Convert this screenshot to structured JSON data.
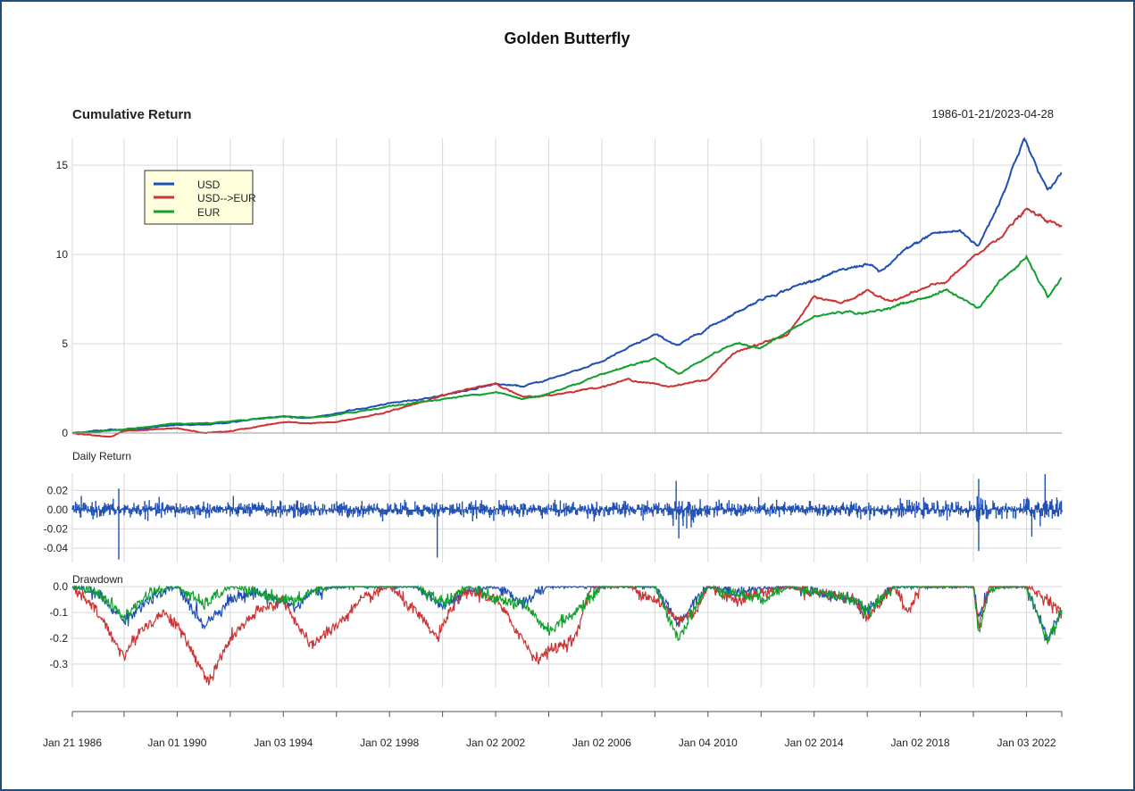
{
  "chart_data": {
    "type": "line",
    "title": "Golden Butterfly",
    "date_range": "1986-01-21/2023-04-28",
    "colors": {
      "USD": "#1f4fb4",
      "USD-->EUR": "#cc3333",
      "EUR": "#11a02d"
    },
    "x_ticks": [
      "Jan 21 1986",
      "Jan 01 1990",
      "Jan 03 1994",
      "Jan 02 1998",
      "Jan 02 2002",
      "Jan 02 2006",
      "Jan 04 2010",
      "Jan 02 2014",
      "Jan 02 2018",
      "Jan 03 2022"
    ],
    "x_tick_years": [
      1986.05,
      1990.0,
      1994.0,
      1998.0,
      2002.0,
      2006.0,
      2010.0,
      2014.0,
      2018.0,
      2022.0
    ],
    "xlim": [
      1986.05,
      2023.33
    ],
    "panels": [
      {
        "name": "Cumulative Return",
        "legend": [
          "USD",
          "USD-->EUR",
          "EUR"
        ],
        "legend_position": "top-left",
        "ylim": [
          0,
          16.5
        ],
        "y_ticks": [
          "0",
          "5",
          "10",
          "15"
        ],
        "y_tick_values": [
          0,
          5,
          10,
          15
        ],
        "series": [
          {
            "name": "USD",
            "points": [
              [
                1986.05,
                0
              ],
              [
                1987.5,
                0.2
              ],
              [
                1988.0,
                0.15
              ],
              [
                1990,
                0.45
              ],
              [
                1991,
                0.45
              ],
              [
                1992,
                0.6
              ],
              [
                1994,
                0.95
              ],
              [
                1995,
                0.85
              ],
              [
                1996,
                1.1
              ],
              [
                1998,
                1.65
              ],
              [
                2000,
                2.1
              ],
              [
                2002,
                2.75
              ],
              [
                2003,
                2.6
              ],
              [
                2004,
                3.0
              ],
              [
                2006,
                4.0
              ],
              [
                2008,
                5.5
              ],
              [
                2008.9,
                4.9
              ],
              [
                2010,
                5.9
              ],
              [
                2012,
                7.5
              ],
              [
                2014,
                8.6
              ],
              [
                2016,
                9.5
              ],
              [
                2016.5,
                9.0
              ],
              [
                2017.5,
                10.3
              ],
              [
                2018.5,
                11.2
              ],
              [
                2019.5,
                11.3
              ],
              [
                2020.2,
                10.5
              ],
              [
                2021,
                13.0
              ],
              [
                2021.9,
                16.5
              ],
              [
                2022.8,
                13.5
              ],
              [
                2023.33,
                14.6
              ]
            ]
          },
          {
            "name": "USD-->EUR",
            "points": [
              [
                1986.05,
                0
              ],
              [
                1987.5,
                -0.2
              ],
              [
                1988,
                0.1
              ],
              [
                1990,
                0.25
              ],
              [
                1991,
                0.0
              ],
              [
                1992,
                0.1
              ],
              [
                1994,
                0.6
              ],
              [
                1995,
                0.55
              ],
              [
                1996,
                0.6
              ],
              [
                1998,
                1.2
              ],
              [
                2000,
                2.1
              ],
              [
                2002,
                2.8
              ],
              [
                2003,
                2.0
              ],
              [
                2004,
                2.1
              ],
              [
                2006,
                2.6
              ],
              [
                2007,
                3.0
              ],
              [
                2008.5,
                2.6
              ],
              [
                2010,
                3.0
              ],
              [
                2011,
                4.5
              ],
              [
                2012,
                5.0
              ],
              [
                2013,
                5.5
              ],
              [
                2014,
                7.6
              ],
              [
                2015,
                7.3
              ],
              [
                2016,
                7.9
              ],
              [
                2017,
                7.4
              ],
              [
                2018,
                8.0
              ],
              [
                2019,
                8.5
              ],
              [
                2020,
                9.8
              ],
              [
                2021,
                11.0
              ],
              [
                2022,
                12.5
              ],
              [
                2022.8,
                11.9
              ],
              [
                2023.33,
                11.5
              ]
            ]
          },
          {
            "name": "EUR",
            "points": [
              [
                1986.05,
                0
              ],
              [
                1988,
                0.2
              ],
              [
                1990,
                0.55
              ],
              [
                1991,
                0.5
              ],
              [
                1992,
                0.65
              ],
              [
                1994,
                0.9
              ],
              [
                1995,
                0.85
              ],
              [
                1996,
                1.0
              ],
              [
                1998,
                1.5
              ],
              [
                2000,
                1.9
              ],
              [
                2002,
                2.3
              ],
              [
                2003,
                1.9
              ],
              [
                2004,
                2.2
              ],
              [
                2006,
                3.3
              ],
              [
                2008,
                4.2
              ],
              [
                2008.9,
                3.3
              ],
              [
                2010,
                4.3
              ],
              [
                2011,
                5.0
              ],
              [
                2012,
                4.8
              ],
              [
                2014,
                6.5
              ],
              [
                2015,
                6.8
              ],
              [
                2016,
                6.7
              ],
              [
                2018,
                7.5
              ],
              [
                2019,
                8.0
              ],
              [
                2020.2,
                7.0
              ],
              [
                2021,
                8.5
              ],
              [
                2022,
                9.8
              ],
              [
                2022.8,
                7.6
              ],
              [
                2023.33,
                8.7
              ]
            ]
          }
        ]
      },
      {
        "name": "Daily Return",
        "ylim": [
          -0.055,
          0.038
        ],
        "y_ticks": [
          "0.02",
          "0.00",
          "-0.02",
          "-0.04"
        ],
        "y_tick_values": [
          0.02,
          0.0,
          -0.02,
          -0.04
        ],
        "series": [
          {
            "name": "USD",
            "base_volatility": 0.004,
            "spikes": [
              [
                1987.8,
                -0.052
              ],
              [
                1987.8,
                0.022
              ],
              [
                1999.8,
                -0.05
              ],
              [
                2008.8,
                0.03
              ],
              [
                2008.9,
                -0.03
              ],
              [
                2020.2,
                -0.043
              ],
              [
                2020.2,
                0.032
              ],
              [
                2022.7,
                0.037
              ],
              [
                2022.2,
                -0.028
              ]
            ]
          }
        ]
      },
      {
        "name": "Drawdown",
        "ylim": [
          -0.39,
          0.0
        ],
        "y_ticks": [
          "0.0",
          "-0.1",
          "-0.2",
          "-0.3"
        ],
        "y_tick_values": [
          0.0,
          -0.1,
          -0.2,
          -0.3
        ],
        "series": [
          {
            "name": "USD",
            "points": [
              [
                1986.05,
                0
              ],
              [
                1987.0,
                -0.03
              ],
              [
                1988.0,
                -0.13
              ],
              [
                1989,
                -0.05
              ],
              [
                1990,
                0
              ],
              [
                1991,
                -0.15
              ],
              [
                1992,
                -0.05
              ],
              [
                1993,
                -0.02
              ],
              [
                1994.5,
                -0.08
              ],
              [
                1995,
                -0.03
              ],
              [
                1996,
                0
              ],
              [
                1999,
                0
              ],
              [
                2000,
                -0.08
              ],
              [
                2001,
                -0.02
              ],
              [
                2002,
                0
              ],
              [
                2003,
                -0.06
              ],
              [
                2004,
                0
              ],
              [
                2008,
                0
              ],
              [
                2008.9,
                -0.15
              ],
              [
                2009.5,
                -0.05
              ],
              [
                2010,
                0
              ],
              [
                2011,
                -0.02
              ],
              [
                2013,
                0
              ],
              [
                2015.5,
                -0.05
              ],
              [
                2016,
                -0.1
              ],
              [
                2017,
                0
              ],
              [
                2020,
                0
              ],
              [
                2020.2,
                -0.12
              ],
              [
                2020.6,
                0
              ],
              [
                2022,
                0
              ],
              [
                2022.8,
                -0.2
              ],
              [
                2023.33,
                -0.1
              ]
            ]
          },
          {
            "name": "USD-->EUR",
            "points": [
              [
                1986.05,
                0
              ],
              [
                1987,
                -0.1
              ],
              [
                1988,
                -0.27
              ],
              [
                1988.6,
                -0.17
              ],
              [
                1989.5,
                -0.1
              ],
              [
                1990,
                -0.15
              ],
              [
                1991.2,
                -0.37
              ],
              [
                1992,
                -0.2
              ],
              [
                1993,
                -0.1
              ],
              [
                1994,
                -0.05
              ],
              [
                1995,
                -0.23
              ],
              [
                1996,
                -0.15
              ],
              [
                1997,
                -0.05
              ],
              [
                1998,
                0
              ],
              [
                1999,
                -0.1
              ],
              [
                1999.8,
                -0.2
              ],
              [
                2000.5,
                -0.05
              ],
              [
                2001,
                -0.02
              ],
              [
                2002,
                -0.05
              ],
              [
                2003,
                -0.2
              ],
              [
                2003.5,
                -0.28
              ],
              [
                2004,
                -0.25
              ],
              [
                2005,
                -0.2
              ],
              [
                2005.6,
                0
              ],
              [
                2007,
                0
              ],
              [
                2008,
                -0.05
              ],
              [
                2008.9,
                -0.13
              ],
              [
                2009.5,
                -0.1
              ],
              [
                2010,
                0
              ],
              [
                2011,
                -0.05
              ],
              [
                2013,
                0
              ],
              [
                2015.5,
                -0.05
              ],
              [
                2016,
                -0.12
              ],
              [
                2017,
                0
              ],
              [
                2017.5,
                -0.1
              ],
              [
                2018,
                0
              ],
              [
                2020,
                0
              ],
              [
                2020.2,
                -0.15
              ],
              [
                2020.6,
                0
              ],
              [
                2022,
                0
              ],
              [
                2022.8,
                -0.05
              ],
              [
                2023.33,
                -0.1
              ]
            ]
          },
          {
            "name": "EUR",
            "points": [
              [
                1986.05,
                0
              ],
              [
                1987,
                -0.02
              ],
              [
                1988,
                -0.12
              ],
              [
                1989,
                -0.02
              ],
              [
                1990,
                0
              ],
              [
                1991,
                -0.07
              ],
              [
                1992,
                0
              ],
              [
                1994.5,
                -0.06
              ],
              [
                1995,
                -0.02
              ],
              [
                1996,
                0
              ],
              [
                1999,
                0
              ],
              [
                2000,
                -0.06
              ],
              [
                2001,
                0
              ],
              [
                2002,
                -0.05
              ],
              [
                2003,
                -0.07
              ],
              [
                2004,
                -0.17
              ],
              [
                2005,
                -0.1
              ],
              [
                2006,
                0
              ],
              [
                2008,
                0
              ],
              [
                2008.9,
                -0.2
              ],
              [
                2009.5,
                -0.08
              ],
              [
                2010,
                0
              ],
              [
                2012,
                -0.05
              ],
              [
                2013,
                0
              ],
              [
                2015.5,
                -0.05
              ],
              [
                2016,
                -0.1
              ],
              [
                2017,
                0
              ],
              [
                2020,
                0
              ],
              [
                2020.2,
                -0.18
              ],
              [
                2020.6,
                -0.02
              ],
              [
                2021,
                0
              ],
              [
                2022,
                0
              ],
              [
                2022.8,
                -0.21
              ],
              [
                2023.33,
                -0.09
              ]
            ]
          }
        ]
      }
    ]
  }
}
